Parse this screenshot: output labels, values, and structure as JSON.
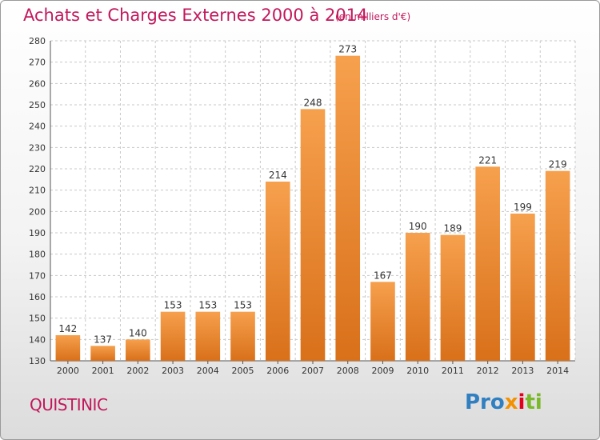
{
  "title": "Achats et Charges Externes 2000 à 2014",
  "subtitle": "(en milliers d'€)",
  "commune": "QUISTINIC",
  "logo": {
    "part1": "Pro",
    "part2": "x",
    "part3": "i",
    "part4": "ti"
  },
  "colors": {
    "bar_light": "#f6a04d",
    "bar_dark": "#d9701a",
    "title": "#c2185b",
    "grid": "#c8c8c8"
  },
  "chart_data": {
    "type": "bar",
    "categories": [
      "2000",
      "2001",
      "2002",
      "2003",
      "2004",
      "2005",
      "2006",
      "2007",
      "2008",
      "2009",
      "2010",
      "2011",
      "2012",
      "2013",
      "2014"
    ],
    "values": [
      142,
      137,
      140,
      153,
      153,
      153,
      214,
      248,
      273,
      167,
      190,
      189,
      221,
      199,
      219
    ],
    "ylim": [
      130,
      280
    ],
    "yticks": [
      130,
      140,
      150,
      160,
      170,
      180,
      190,
      200,
      210,
      220,
      230,
      240,
      250,
      260,
      270,
      280
    ],
    "grid": true,
    "data_labels": true
  }
}
